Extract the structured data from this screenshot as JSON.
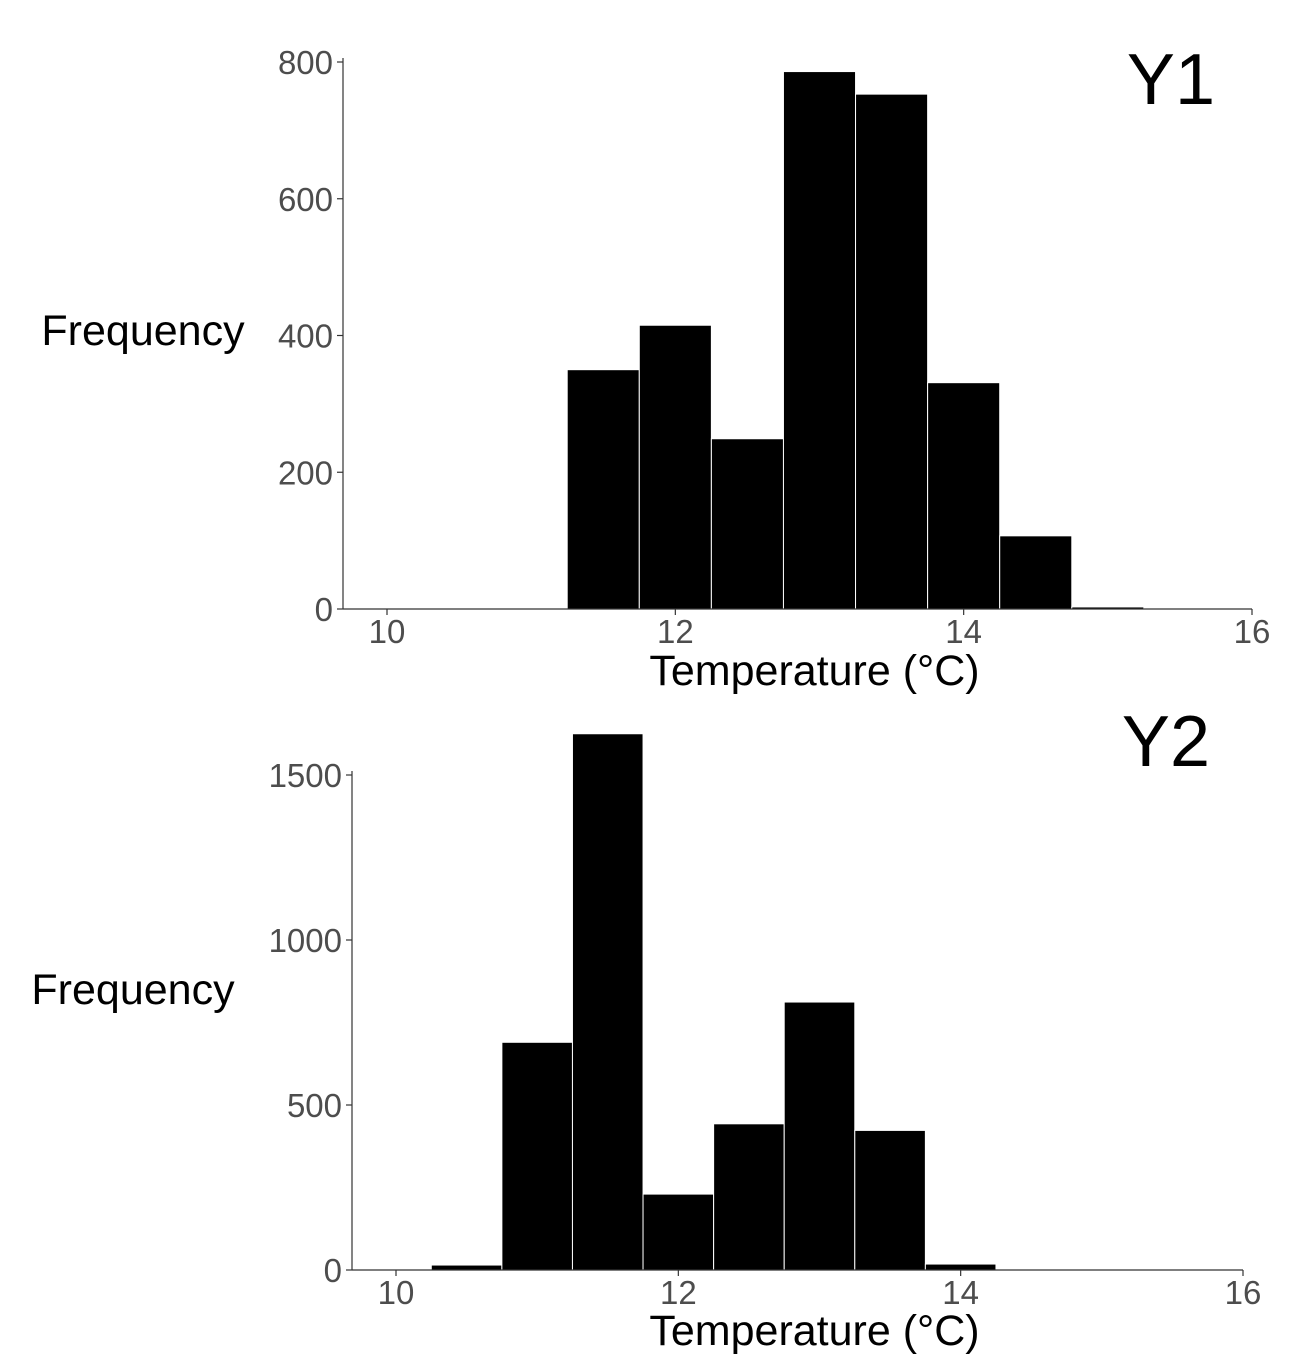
{
  "chart_data": [
    {
      "type": "bar",
      "title": "Y1",
      "xlabel": "Temperature (°C)",
      "ylabel": "Frequency",
      "xlim": [
        9.7,
        16
      ],
      "ylim": [
        0,
        800
      ],
      "x_ticks": [
        10,
        12,
        14,
        16
      ],
      "y_ticks": [
        0,
        200,
        400,
        600,
        800
      ],
      "grid": false,
      "bin_width": 0.5,
      "bins": [
        {
          "x0": 11.25,
          "x1": 11.75,
          "value": 350
        },
        {
          "x0": 11.75,
          "x1": 12.25,
          "value": 415
        },
        {
          "x0": 12.25,
          "x1": 12.75,
          "value": 249
        },
        {
          "x0": 12.75,
          "x1": 13.25,
          "value": 786
        },
        {
          "x0": 13.25,
          "x1": 13.75,
          "value": 753
        },
        {
          "x0": 13.75,
          "x1": 14.25,
          "value": 331
        },
        {
          "x0": 14.25,
          "x1": 14.75,
          "value": 107
        },
        {
          "x0": 14.75,
          "x1": 15.25,
          "value": 3
        },
        {
          "x0": 15.25,
          "x1": 15.75,
          "value": 1
        }
      ]
    },
    {
      "type": "bar",
      "title": "Y2",
      "xlabel": "Temperature (°C)",
      "ylabel": "Frequency",
      "xlim": [
        9.7,
        16
      ],
      "ylim": [
        0,
        1500
      ],
      "x_ticks": [
        10,
        12,
        14,
        16
      ],
      "y_ticks": [
        0,
        500,
        1000,
        1500
      ],
      "grid": false,
      "bin_width": 0.5,
      "bins": [
        {
          "x0": 10.25,
          "x1": 10.75,
          "value": 15
        },
        {
          "x0": 10.75,
          "x1": 11.25,
          "value": 690
        },
        {
          "x0": 11.25,
          "x1": 11.75,
          "value": 1625
        },
        {
          "x0": 11.75,
          "x1": 12.25,
          "value": 230
        },
        {
          "x0": 12.25,
          "x1": 12.75,
          "value": 443
        },
        {
          "x0": 12.75,
          "x1": 13.25,
          "value": 812
        },
        {
          "x0": 13.25,
          "x1": 13.75,
          "value": 423
        },
        {
          "x0": 13.75,
          "x1": 14.25,
          "value": 18
        }
      ]
    }
  ],
  "colors": {
    "bar_fill": "#000000",
    "bar_stroke": "#ffffff",
    "axis": "#333333",
    "tick_text": "#4d4d4d",
    "title_text": "#000000"
  }
}
